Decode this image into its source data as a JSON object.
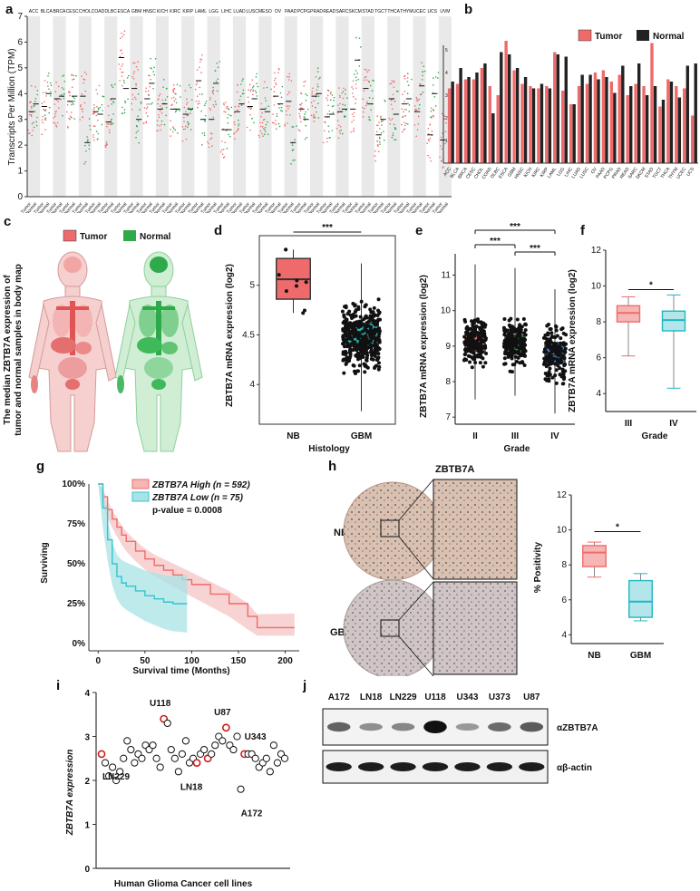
{
  "panels": {
    "a": {
      "label": "a"
    },
    "b": {
      "label": "b"
    },
    "c": {
      "label": "c"
    },
    "d": {
      "label": "d"
    },
    "e": {
      "label": "e"
    },
    "f": {
      "label": "f"
    },
    "g": {
      "label": "g"
    },
    "h": {
      "label": "h"
    },
    "i": {
      "label": "i"
    },
    "j": {
      "label": "j"
    }
  },
  "colors": {
    "tumor": "#ef6b6b",
    "normal": "#2eaa4a",
    "cyan": "#35c4cc",
    "black": "#222222",
    "grey_band": "#e9e9e9"
  },
  "panel_a": {
    "ylabel": "Transcripts Per Million (TPM)",
    "ylim": [
      0,
      7
    ],
    "yticks": [
      "0",
      "1",
      "2",
      "3",
      "4",
      "5",
      "6",
      "7"
    ],
    "cancers": [
      {
        "name": "ACC",
        "color": "#000000",
        "t": 3.3,
        "n": 3.6
      },
      {
        "name": "BLCA",
        "color": "#000000",
        "t": 3.5,
        "n": 4.0
      },
      {
        "name": "BRCA",
        "color": "#000000",
        "t": 3.8,
        "n": 3.9
      },
      {
        "name": "CESC",
        "color": "#000000",
        "t": 3.7,
        "n": 3.9
      },
      {
        "name": "CHOL",
        "color": "#000000",
        "t": 3.9,
        "n": 2.1
      },
      {
        "name": "COAD",
        "color": "#000000",
        "t": 3.3,
        "n": 3.2
      },
      {
        "name": "DLBC",
        "color": "#000000",
        "t": 2.9,
        "n": 3.8
      },
      {
        "name": "ESCA",
        "color": "#000000",
        "t": 5.4,
        "n": 4.2
      },
      {
        "name": "GBM",
        "color": "#2eaa4a",
        "t": 4.2,
        "n": 3.0
      },
      {
        "name": "HNSC",
        "color": "#000000",
        "t": 3.8,
        "n": 4.4
      },
      {
        "name": "KICH",
        "color": "#000000",
        "t": 3.4,
        "n": 3.6
      },
      {
        "name": "KIRC",
        "color": "#000000",
        "t": 3.4,
        "n": 3.4
      },
      {
        "name": "KIRP",
        "color": "#000000",
        "t": 3.2,
        "n": 3.4
      },
      {
        "name": "LAML",
        "color": "#ef6b6b",
        "t": 4.5,
        "n": 3.0
      },
      {
        "name": "LGG",
        "color": "#2eaa4a",
        "t": 3.0,
        "n": 4.4
      },
      {
        "name": "LIHC",
        "color": "#000000",
        "t": 2.6,
        "n": 2.6
      },
      {
        "name": "LUAD",
        "color": "#000000",
        "t": 3.3,
        "n": 3.6
      },
      {
        "name": "LUSC",
        "color": "#000000",
        "t": 3.5,
        "n": 3.8
      },
      {
        "name": "MESO",
        "color": "#000000",
        "t": 3.4,
        "n": 3.3
      },
      {
        "name": "OV",
        "color": "#000000",
        "t": 3.9,
        "n": 3.6
      },
      {
        "name": "PAAD",
        "color": "#ef6b6b",
        "t": 3.7,
        "n": 2.1
      },
      {
        "name": "PCPG",
        "color": "#000000",
        "t": 3.4,
        "n": 3.0
      },
      {
        "name": "PRAD",
        "color": "#000000",
        "t": 3.9,
        "n": 4.0
      },
      {
        "name": "READ",
        "color": "#000000",
        "t": 3.1,
        "n": 3.2
      },
      {
        "name": "SARC",
        "color": "#000000",
        "t": 3.3,
        "n": 3.4
      },
      {
        "name": "SKCM",
        "color": "#000000",
        "t": 3.4,
        "n": 5.3
      },
      {
        "name": "STAD",
        "color": "#ef6b6b",
        "t": 4.2,
        "n": 3.6
      },
      {
        "name": "TGCT",
        "color": "#000000",
        "t": 2.4,
        "n": 3.0
      },
      {
        "name": "THCA",
        "color": "#000000",
        "t": 3.8,
        "n": 3.2
      },
      {
        "name": "THYM",
        "color": "#000000",
        "t": 3.6,
        "n": 3.8
      },
      {
        "name": "UCEC",
        "color": "#2eaa4a",
        "t": 3.3,
        "n": 4.3
      },
      {
        "name": "UCS",
        "color": "#2eaa4a",
        "t": 2.4,
        "n": 4.0
      },
      {
        "name": "UVM",
        "color": "#000000",
        "t": 2.2,
        "n": null
      }
    ]
  },
  "panel_b": {
    "legend_tumor": "Tumor",
    "legend_normal": "Normal",
    "ylim": [
      0,
      6
    ],
    "yticks": [
      "1",
      "2",
      "3",
      "4",
      "5"
    ],
    "chart_data": {
      "type": "bar",
      "categories": [
        "ACC",
        "BLCA",
        "BRCA",
        "CESC",
        "CHOL",
        "COAD",
        "DLBC",
        "ESCA",
        "GBM",
        "HNSC",
        "KICH",
        "KIRC",
        "KIRP",
        "LAML",
        "LGG",
        "LIHC",
        "LUAD",
        "LUSC",
        "OV",
        "PAAD",
        "PCPG",
        "PRAD",
        "READ",
        "SARC",
        "SKCM",
        "STAD",
        "TGCT",
        "THCA",
        "THYM",
        "UCEC",
        "UCS"
      ],
      "series": [
        {
          "name": "Tumor",
          "values": [
            3.3,
            3.5,
            3.7,
            3.7,
            4.2,
            3.4,
            3.0,
            5.4,
            4.1,
            3.5,
            3.4,
            3.3,
            3.4,
            4.9,
            3.2,
            2.6,
            3.4,
            3.5,
            4.0,
            4.1,
            3.6,
            3.9,
            3.0,
            3.5,
            3.4,
            5.3,
            2.5,
            3.7,
            3.4,
            3.3,
            2.1
          ]
        },
        {
          "name": "Normal",
          "values": [
            3.6,
            4.2,
            3.8,
            4.0,
            4.4,
            2.2,
            4.9,
            4.8,
            4.2,
            3.8,
            3.3,
            3.5,
            3.3,
            4.8,
            4.7,
            2.6,
            3.9,
            3.9,
            3.7,
            3.8,
            3.1,
            4.3,
            3.4,
            4.4,
            3.0,
            3.4,
            2.8,
            3.6,
            2.9,
            4.3,
            4.4
          ]
        }
      ]
    }
  },
  "panel_c": {
    "legend_tumor": "Tumor",
    "legend_normal": "Normal",
    "side_lines": [
      "The median ZBTB7A expression of",
      "tumor and normal samples in body map"
    ]
  },
  "panel_d": {
    "ylabel": "ZBTB7A mRNA expression (log2)",
    "xlabel": "Histology",
    "significance": "***",
    "ylim": [
      3.6,
      5.5
    ],
    "yticks": [
      "4",
      "4.5",
      "5"
    ],
    "chart_data": {
      "type": "box",
      "categories": [
        "NB",
        "GBM"
      ],
      "boxes": [
        {
          "name": "NB",
          "q1": 4.86,
          "median": 5.06,
          "q3": 5.27,
          "min": 4.72,
          "max": 5.36
        },
        {
          "name": "GBM",
          "q1": 4.38,
          "median": 4.48,
          "q3": 4.62,
          "min": 3.73,
          "max": 5.22
        }
      ]
    }
  },
  "panel_e": {
    "ylabel": "ZBTB7A mRNA expression (log2)",
    "xlabel": "Grade",
    "significance": [
      "***",
      "***",
      "***"
    ],
    "ylim": [
      6.8,
      11.6
    ],
    "yticks": [
      "7",
      "8",
      "9",
      "10",
      "11"
    ],
    "chart_data": {
      "type": "box",
      "categories": [
        "II",
        "III",
        "IV"
      ],
      "boxes": [
        {
          "name": "II",
          "q1": 8.85,
          "median": 9.1,
          "q3": 9.35,
          "min": 7.5,
          "max": 11.3
        },
        {
          "name": "III",
          "q1": 8.8,
          "median": 9.05,
          "q3": 9.3,
          "min": 7.6,
          "max": 11.2
        },
        {
          "name": "IV",
          "q1": 8.5,
          "median": 8.75,
          "q3": 9.1,
          "min": 7.1,
          "max": 10.6
        }
      ]
    }
  },
  "panel_f": {
    "ylabel": "ZBTB7A mRNA expression (log2)",
    "xlabel": "Grade",
    "significance": "*",
    "ylim": [
      3,
      12
    ],
    "yticks": [
      "4",
      "6",
      "8",
      "10",
      "12"
    ],
    "chart_data": {
      "type": "box",
      "categories": [
        "III",
        "IV"
      ],
      "boxes": [
        {
          "name": "III",
          "q1": 8.0,
          "median": 8.5,
          "q3": 8.9,
          "min": 6.1,
          "max": 9.4
        },
        {
          "name": "IV",
          "q1": 7.5,
          "median": 8.1,
          "q3": 8.6,
          "min": 4.3,
          "max": 9.5
        }
      ]
    }
  },
  "panel_g": {
    "ylabel": "Surviving",
    "xlabel": "Survival time (Months)",
    "legend_high": "ZBTB7A High (n = 592)",
    "legend_low": "ZBTB7A Low (n = 75)",
    "pvalue": "p-value = 0.0008",
    "yticks": [
      "0%",
      "25%",
      "50%",
      "75%",
      "100%"
    ],
    "xticks": [
      "0",
      "50",
      "100",
      "150",
      "200"
    ],
    "chart_data": {
      "type": "line",
      "xlim": [
        -10,
        215
      ],
      "ylim": [
        0,
        1
      ],
      "series": [
        {
          "name": "ZBTB7A High (n = 592)",
          "x": [
            0,
            5,
            10,
            15,
            20,
            25,
            30,
            40,
            50,
            60,
            70,
            80,
            90,
            100,
            120,
            140,
            160,
            170,
            190,
            210
          ],
          "y": [
            1.0,
            0.92,
            0.84,
            0.78,
            0.73,
            0.68,
            0.64,
            0.58,
            0.53,
            0.49,
            0.46,
            0.43,
            0.4,
            0.37,
            0.31,
            0.25,
            0.17,
            0.1,
            0.1,
            0.1
          ]
        },
        {
          "name": "ZBTB7A Low (n = 75)",
          "x": [
            0,
            5,
            10,
            15,
            20,
            25,
            30,
            40,
            50,
            60,
            70,
            80,
            90,
            95
          ],
          "y": [
            1.0,
            0.85,
            0.65,
            0.5,
            0.42,
            0.38,
            0.36,
            0.33,
            0.3,
            0.28,
            0.26,
            0.25,
            0.25,
            0.25
          ]
        }
      ]
    }
  },
  "panel_h": {
    "title": "ZBTB7A",
    "row_nb": "NB",
    "row_gbm": "GBM",
    "ylabel": "% Positivity",
    "significance": "*",
    "ylim": [
      3.5,
      12
    ],
    "yticks": [
      "4",
      "6",
      "8",
      "10",
      "12"
    ],
    "chart_data": {
      "type": "box",
      "categories": [
        "NB",
        "GBM"
      ],
      "boxes": [
        {
          "name": "NB",
          "q1": 7.9,
          "median": 8.7,
          "q3": 9.1,
          "min": 7.3,
          "max": 9.3
        },
        {
          "name": "GBM",
          "q1": 5.0,
          "median": 5.9,
          "q3": 7.1,
          "min": 4.8,
          "max": 7.5
        }
      ]
    }
  },
  "panel_i": {
    "ylabel": "ZBTB7A expression",
    "xlabel": "Human Glioma Cancer cell lines",
    "yticks": [
      "0",
      "1",
      "2",
      "3",
      "4"
    ],
    "ylim": [
      0,
      4
    ],
    "labels": [
      "U118",
      "U87",
      "U343",
      "LN229",
      "LN18",
      "A172"
    ],
    "chart_data": {
      "type": "scatter",
      "y": [
        2.6,
        2.4,
        2.1,
        2.3,
        2.0,
        2.2,
        2.5,
        2.9,
        2.7,
        2.4,
        2.6,
        2.5,
        2.8,
        2.7,
        2.8,
        2.5,
        2.3,
        3.4,
        3.3,
        2.7,
        2.5,
        2.2,
        2.6,
        2.9,
        2.4,
        2.5,
        2.4,
        2.6,
        2.7,
        2.5,
        2.6,
        2.8,
        3.0,
        2.9,
        3.2,
        2.8,
        2.7,
        3.0,
        1.8,
        2.6,
        2.6,
        2.6,
        2.5,
        2.3,
        2.4,
        2.5,
        2.2,
        2.8,
        2.4,
        2.6,
        2.5
      ],
      "highlight_indices": [
        0,
        17,
        26,
        29,
        34,
        39
      ]
    }
  },
  "panel_j": {
    "lanes": [
      "A172",
      "LN18",
      "LN229",
      "U118",
      "U343",
      "U373",
      "U87"
    ],
    "blot_top": "αZBTB7A",
    "blot_bottom": "αβ-actin",
    "band_intensity_top": [
      0.55,
      0.3,
      0.35,
      1.0,
      0.25,
      0.5,
      0.6
    ],
    "band_intensity_bottom": [
      0.95,
      0.95,
      0.95,
      0.95,
      0.95,
      0.95,
      0.95
    ]
  }
}
